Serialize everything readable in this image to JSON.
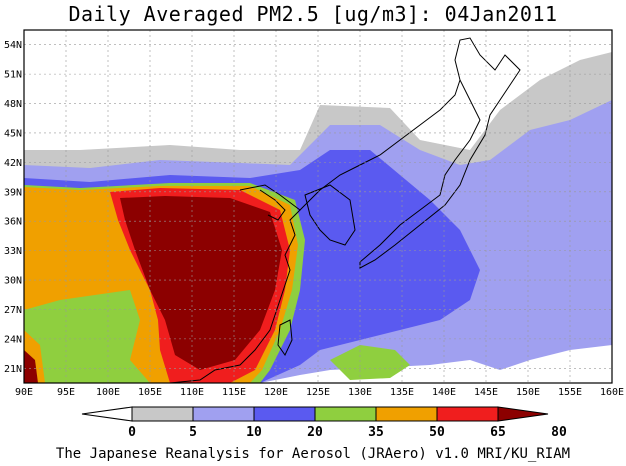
{
  "title": "Daily Averaged PM2.5 [ug/m3]: 04Jan2011",
  "footer": "The Japanese Reanalysis for Aerosol (JRAero) v1.0 MRI/KU_RIAM",
  "map": {
    "lon_labels": [
      "90E",
      "95E",
      "100E",
      "105E",
      "110E",
      "115E",
      "120E",
      "125E",
      "130E",
      "135E",
      "140E",
      "145E",
      "150E",
      "155E",
      "160E"
    ],
    "lat_labels": [
      "54N",
      "51N",
      "48N",
      "45N",
      "42N",
      "39N",
      "36N",
      "33N",
      "30N",
      "27N",
      "24N",
      "21N"
    ]
  },
  "colorbar": {
    "boundaries": [
      "0",
      "5",
      "10",
      "20",
      "35",
      "50",
      "65",
      "80"
    ],
    "colors": [
      "#ffffff",
      "#c8c8c8",
      "#a0a0f0",
      "#5a5af0",
      "#8fcf3f",
      "#f0a000",
      "#f01e1e",
      "#8c0000"
    ]
  }
}
